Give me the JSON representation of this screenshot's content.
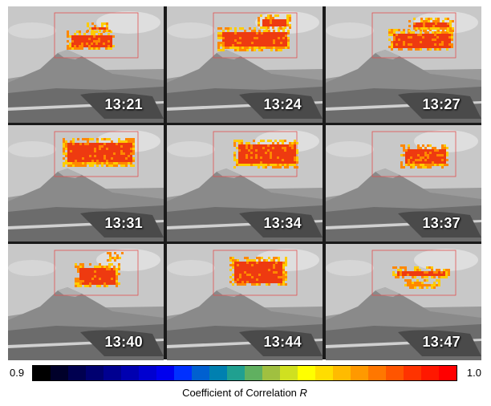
{
  "panels": [
    {
      "time": "13:21"
    },
    {
      "time": "13:24"
    },
    {
      "time": "13:27"
    },
    {
      "time": "13:31"
    },
    {
      "time": "13:34"
    },
    {
      "time": "13:37"
    },
    {
      "time": "13:40"
    },
    {
      "time": "13:44"
    },
    {
      "time": "13:47"
    }
  ],
  "colorbar": {
    "min_label": "0.9",
    "max_label": "1.0",
    "title": "Coefficient of Correlation",
    "title_symbol": "R",
    "colors": [
      "#000000",
      "#00002a",
      "#000050",
      "#000070",
      "#000090",
      "#0000b0",
      "#0000d0",
      "#0000ee",
      "#0030ff",
      "#0060d0",
      "#0080b0",
      "#20a090",
      "#60b060",
      "#a0c040",
      "#d0e020",
      "#ffff00",
      "#ffdd00",
      "#ffbb00",
      "#ff9900",
      "#ff7700",
      "#ff5500",
      "#ff3300",
      "#ff1800",
      "#ff0000"
    ]
  },
  "image_colors": {
    "sky": "#c8c8c8",
    "volcano": "#8a8a8a",
    "ground": "#6c6c6c",
    "plume_core": "#ee3a10",
    "plume_edge": "#ffcc00",
    "roi_box": "#e05050"
  }
}
